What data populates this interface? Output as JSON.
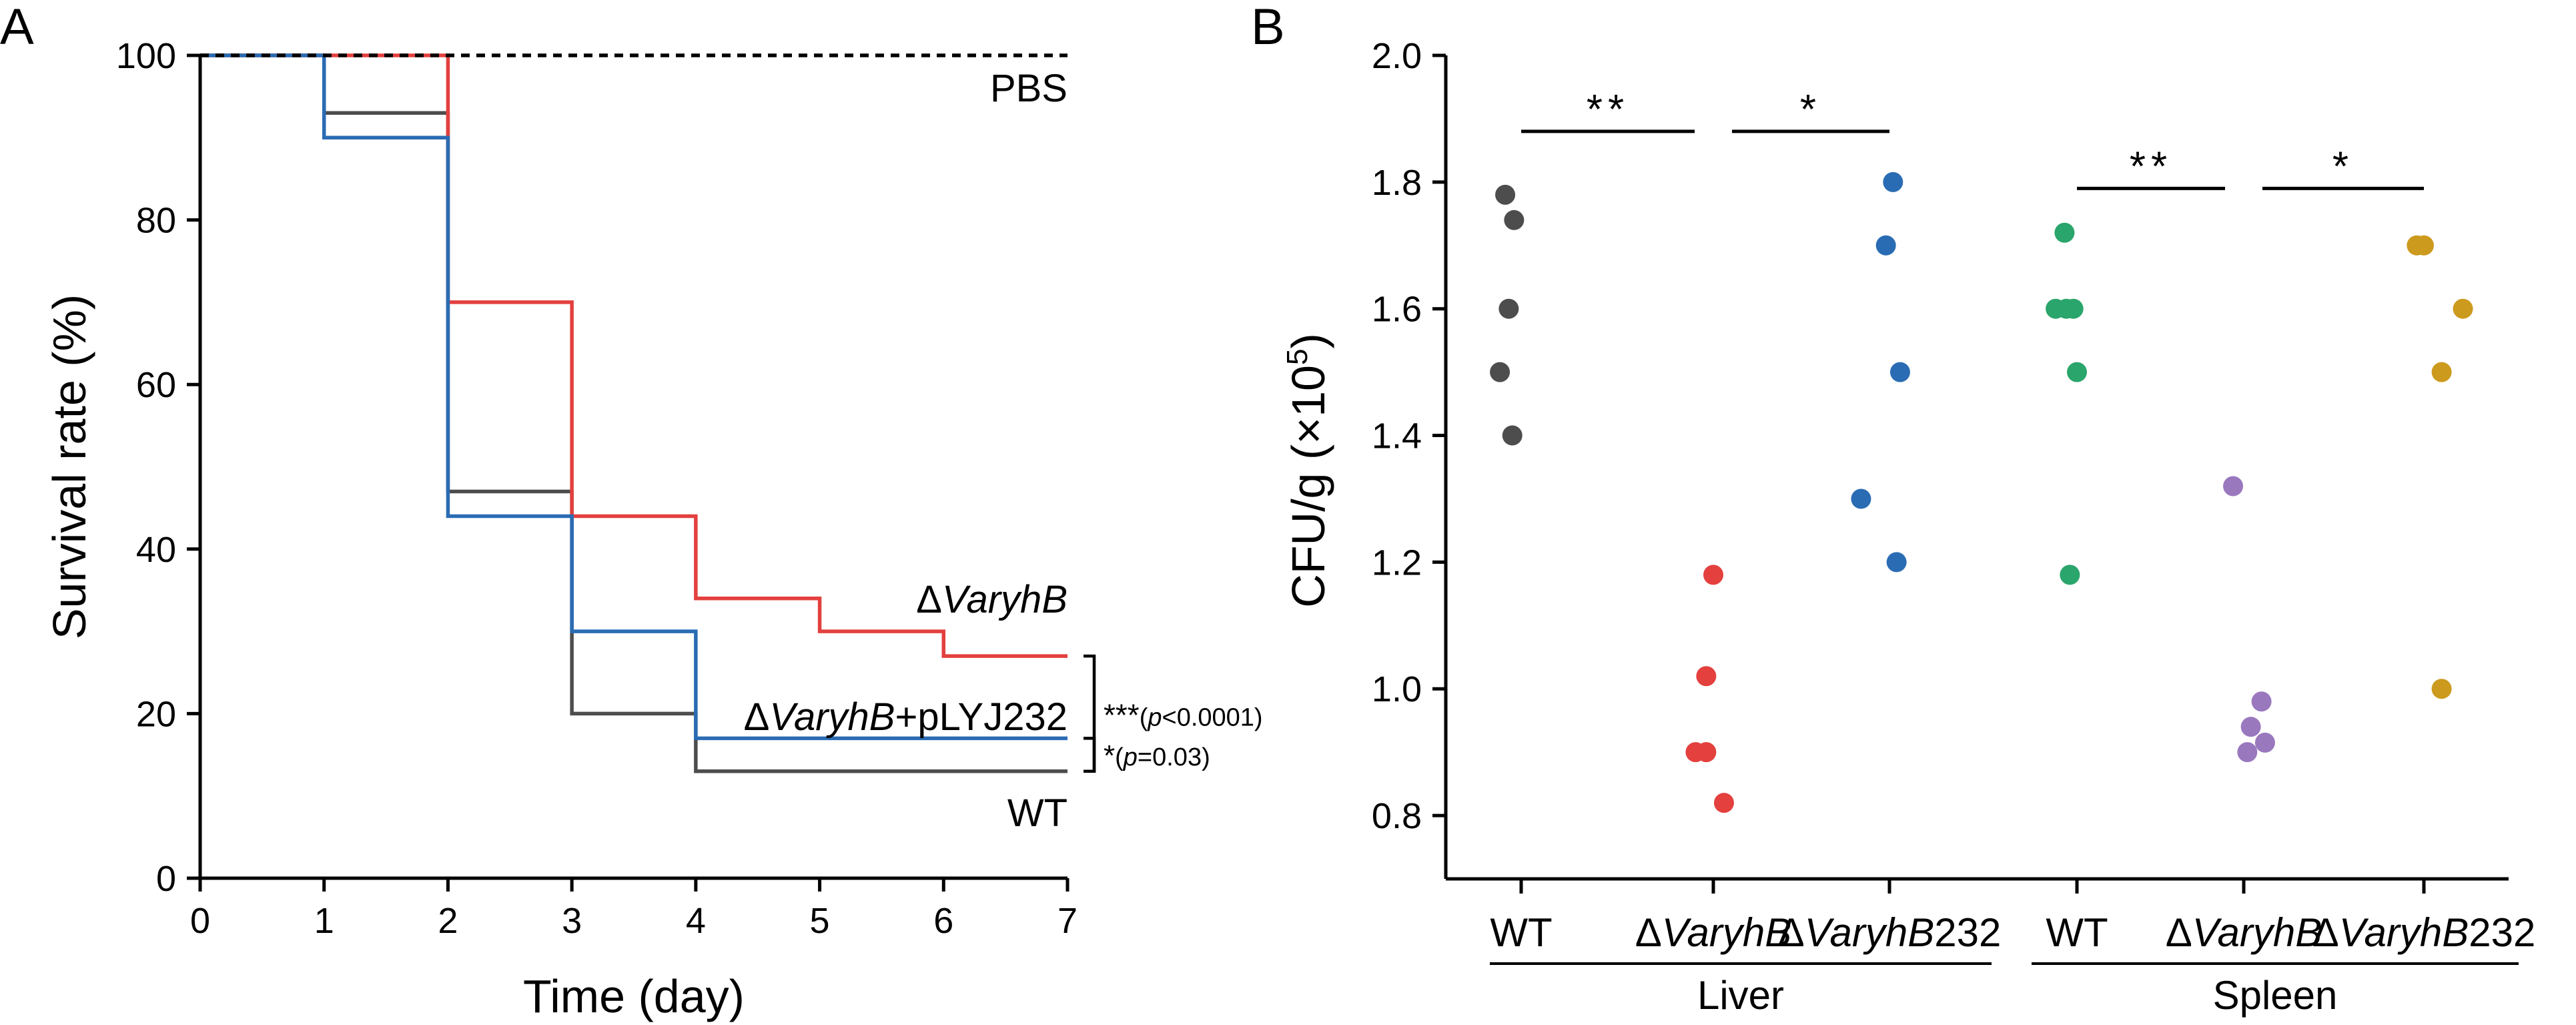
{
  "chart_data": [
    {
      "panel": "A",
      "type": "line",
      "subtype": "step",
      "xlabel": "Time (day)",
      "ylabel": "Survival rate (%)",
      "xlim": [
        0,
        7
      ],
      "ylim": [
        0,
        100
      ],
      "xticks": [
        0,
        1,
        2,
        3,
        4,
        5,
        6,
        7
      ],
      "yticks": [
        0,
        20,
        40,
        60,
        80,
        100
      ],
      "series": [
        {
          "name": "PBS",
          "label_prefix": "",
          "label_italic": "",
          "label_suffix": "PBS",
          "color": "#000000",
          "dashed": true,
          "x": [
            0,
            7
          ],
          "y": [
            100,
            100
          ]
        },
        {
          "name": "ΔVaryhB",
          "label_prefix": "Δ",
          "label_italic": "VaryhB",
          "label_suffix": "",
          "color": "#e3403e",
          "dashed": false,
          "x": [
            0,
            2,
            3,
            4,
            5,
            6,
            7
          ],
          "y": [
            100,
            70,
            44,
            34,
            30,
            27,
            27
          ]
        },
        {
          "name": "ΔVaryhB+pLYJ232",
          "label_prefix": "Δ",
          "label_italic": "VaryhB",
          "label_suffix": "+pLYJ232",
          "color": "#2a6cb3",
          "dashed": false,
          "x": [
            0,
            1,
            2,
            3,
            4,
            7
          ],
          "y": [
            100,
            90,
            44,
            30,
            17,
            17
          ]
        },
        {
          "name": "WT",
          "label_prefix": "",
          "label_italic": "",
          "label_suffix": "WT",
          "color": "#4d4d4d",
          "dashed": false,
          "x": [
            0,
            1,
            2,
            3,
            4,
            7
          ],
          "y": [
            100,
            93,
            47,
            20,
            13,
            13
          ]
        }
      ],
      "annotations": [
        {
          "stars": "***",
          "text_open": "(",
          "text_italic": "p",
          "text_close": "<0.0001)",
          "between": [
            "ΔVaryhB",
            "WT"
          ]
        },
        {
          "stars": "*",
          "text_open": "(",
          "text_italic": "p",
          "text_close": "=0.03)",
          "between": [
            "ΔVaryhB+pLYJ232",
            "WT"
          ]
        }
      ]
    },
    {
      "panel": "B",
      "type": "scatter",
      "ylabel_main": "CFU/g (×10",
      "ylabel_sup": "5",
      "ylabel_end": ")",
      "ylim": [
        0.7,
        2.0
      ],
      "yticks": [
        "0.8",
        "1.0",
        "1.2",
        "1.4",
        "1.6",
        "1.8",
        "2.0"
      ],
      "categories": [
        {
          "prefix": "",
          "italic": "",
          "suffix": "WT",
          "group": "Liver",
          "color": "#4d4d4d",
          "points": [
            [
              -0.09,
              1.78
            ],
            [
              -0.04,
              1.74
            ],
            [
              -0.07,
              1.6
            ],
            [
              -0.12,
              1.5
            ],
            [
              -0.05,
              1.4
            ]
          ]
        },
        {
          "prefix": "Δ",
          "italic": "VaryhB",
          "suffix": "",
          "group": "Liver",
          "color": "#e3403e",
          "points": [
            [
              0.0,
              1.18
            ],
            [
              -0.04,
              1.02
            ],
            [
              -0.1,
              0.9
            ],
            [
              -0.04,
              0.9
            ],
            [
              0.06,
              0.82
            ]
          ]
        },
        {
          "prefix": "Δ",
          "italic": "VaryhB",
          "suffix": "232",
          "group": "Liver",
          "color": "#2a6cb3",
          "points": [
            [
              0.02,
              1.8
            ],
            [
              -0.02,
              1.7
            ],
            [
              0.06,
              1.5
            ],
            [
              -0.16,
              1.3
            ],
            [
              0.04,
              1.2
            ]
          ]
        },
        {
          "prefix": "",
          "italic": "",
          "suffix": "WT",
          "group": "Spleen",
          "color": "#2aa56b",
          "points": [
            [
              -0.07,
              1.72
            ],
            [
              -0.12,
              1.6
            ],
            [
              -0.06,
              1.6
            ],
            [
              -0.02,
              1.6
            ],
            [
              0.0,
              1.5
            ],
            [
              -0.04,
              1.18
            ]
          ]
        },
        {
          "prefix": "Δ",
          "italic": "VaryhB",
          "suffix": "",
          "group": "Spleen",
          "color": "#9a78be",
          "points": [
            [
              -0.06,
              1.32
            ],
            [
              0.1,
              0.98
            ],
            [
              0.04,
              0.94
            ],
            [
              0.12,
              0.915
            ],
            [
              0.02,
              0.9
            ]
          ]
        },
        {
          "prefix": "Δ",
          "italic": "VaryhB",
          "suffix": "232",
          "group": "Spleen",
          "color": "#cc9a1d",
          "points": [
            [
              -0.04,
              1.7
            ],
            [
              0.0,
              1.7
            ],
            [
              0.22,
              1.6
            ],
            [
              0.1,
              1.5
            ],
            [
              0.1,
              1.0
            ]
          ]
        }
      ],
      "groups": [
        "Liver",
        "Spleen"
      ],
      "significance": [
        {
          "from": 0,
          "to": 1,
          "y": 1.88,
          "label": "**"
        },
        {
          "from": 1,
          "to": 2,
          "y": 1.88,
          "label": "*"
        },
        {
          "from": 3,
          "to": 4,
          "y": 1.79,
          "label": "**"
        },
        {
          "from": 4,
          "to": 5,
          "y": 1.79,
          "label": "*"
        }
      ]
    }
  ],
  "panel_labels": [
    "A",
    "B"
  ]
}
